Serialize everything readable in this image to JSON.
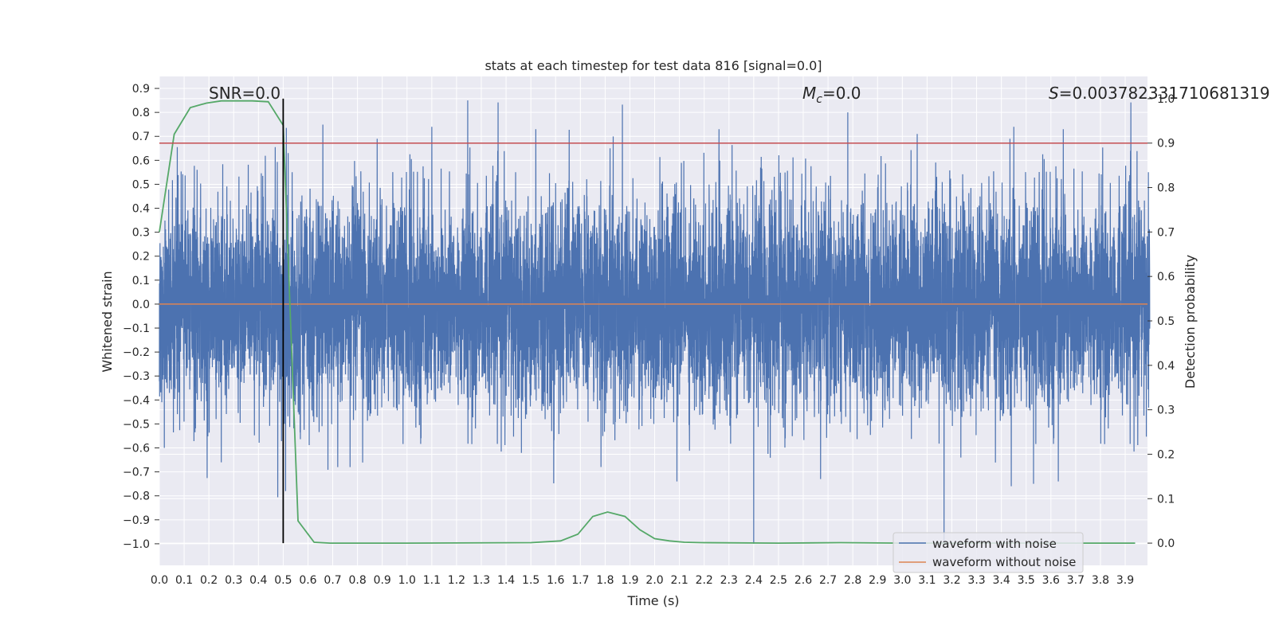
{
  "chart_data": {
    "type": "line",
    "title": "stats at each timestep for test data 816 [signal=0.0]",
    "xlabel": "Time (s)",
    "ylabel": "Whitened strain",
    "y2label": "Detection probability",
    "xlim": [
      0.0,
      3.99
    ],
    "ylim": [
      -1.09,
      0.95
    ],
    "y2lim": [
      -0.05,
      1.05
    ],
    "x_ticks": [
      0.0,
      0.1,
      0.2,
      0.3,
      0.4,
      0.5,
      0.6,
      0.7,
      0.8,
      0.9,
      1.0,
      1.1,
      1.2,
      1.3,
      1.4,
      1.5,
      1.6,
      1.7,
      1.8,
      1.9,
      2.0,
      2.1,
      2.2,
      2.3,
      2.4,
      2.5,
      2.6,
      2.7,
      2.8,
      2.9,
      3.0,
      3.1,
      3.2,
      3.3,
      3.4,
      3.5,
      3.6,
      3.7,
      3.8,
      3.9
    ],
    "x_tick_labels": [
      "0.0",
      "0.1",
      "0.2",
      "0.3",
      "0.4",
      "0.5",
      "0.6",
      "0.7",
      "0.8",
      "0.9",
      "1.0",
      "1.1",
      "1.2",
      "1.3",
      "1.4",
      "1.5",
      "1.6",
      "1.7",
      "1.8",
      "1.9",
      "2.0",
      "2.1",
      "2.2",
      "2.3",
      "2.4",
      "2.5",
      "2.6",
      "2.7",
      "2.8",
      "2.9",
      "3.0",
      "3.1",
      "3.2",
      "3.3",
      "3.4",
      "3.5",
      "3.6",
      "3.7",
      "3.8",
      "3.9"
    ],
    "y_ticks": [
      0.9,
      0.8,
      0.7,
      0.6,
      0.5,
      0.4,
      0.3,
      0.2,
      0.1,
      0.0,
      -0.1,
      -0.2,
      -0.3,
      -0.4,
      -0.5,
      -0.6,
      -0.7,
      -0.8,
      -0.9,
      -1.0
    ],
    "y_tick_labels": [
      "0.9",
      "0.8",
      "0.7",
      "0.6",
      "0.5",
      "0.4",
      "0.3",
      "0.2",
      "0.1",
      "0.0",
      "−0.1",
      "−0.2",
      "−0.3",
      "−0.4",
      "−0.5",
      "−0.6",
      "−0.7",
      "−0.8",
      "−0.9",
      "−1.0"
    ],
    "y2_ticks": [
      1.0,
      0.9,
      0.8,
      0.7,
      0.6,
      0.5,
      0.4,
      0.3,
      0.2,
      0.1,
      0.0
    ],
    "y2_tick_labels": [
      "1.0",
      "0.9",
      "0.8",
      "0.7",
      "0.6",
      "0.5",
      "0.4",
      "0.3",
      "0.2",
      "0.1",
      "0.0"
    ],
    "annotations": {
      "snr": "SNR=0.0",
      "mc_symbol": "M",
      "mc_sub": "c",
      "mc_value": "=0.0",
      "s_symbol": "S",
      "s_value": "=0.003782331710681319"
    },
    "threshold_line": {
      "value": 0.9,
      "axis": "y2"
    },
    "marker_line": {
      "x": 0.5,
      "axis": "y2",
      "range": [
        0.0,
        1.0
      ]
    },
    "series": [
      {
        "name": "waveform with noise",
        "axis": "y",
        "kind": "noise",
        "sample_rate_hz": 2048,
        "duration_s": 4.0,
        "std_estimate": 0.22,
        "range": [
          -1.0,
          0.85
        ],
        "notable_peaks": [
          {
            "x": 1.245,
            "y": 0.85
          },
          {
            "x": 2.4,
            "y": -1.0
          },
          {
            "x": 2.78,
            "y": 0.8
          },
          {
            "x": 1.1,
            "y": 0.74
          },
          {
            "x": 1.52,
            "y": 0.73
          },
          {
            "x": 2.26,
            "y": 0.73
          },
          {
            "x": 3.45,
            "y": 0.74
          },
          {
            "x": 3.65,
            "y": 0.73
          },
          {
            "x": 3.06,
            "y": 0.71
          },
          {
            "x": 1.82,
            "y": 0.65
          },
          {
            "x": 0.52,
            "y": 0.63
          },
          {
            "x": 3.44,
            "y": -0.76
          },
          {
            "x": 3.53,
            "y": -0.75
          },
          {
            "x": 3.63,
            "y": -0.74
          },
          {
            "x": 2.09,
            "y": -0.74
          },
          {
            "x": 2.67,
            "y": -0.73
          },
          {
            "x": 0.02,
            "y": -0.6
          },
          {
            "x": 0.25,
            "y": -0.66
          },
          {
            "x": 0.72,
            "y": -0.68
          },
          {
            "x": 0.77,
            "y": -0.68
          },
          {
            "x": 0.51,
            "y": -0.78
          }
        ]
      },
      {
        "name": "waveform without noise",
        "axis": "y",
        "x": [
          0.0,
          3.99
        ],
        "y": [
          0.0,
          0.0
        ]
      },
      {
        "name": "detection probability",
        "axis": "y2",
        "x": [
          0.0,
          0.06,
          0.125,
          0.19,
          0.25,
          0.31,
          0.375,
          0.44,
          0.5,
          0.56,
          0.625,
          0.69,
          0.75,
          1.0,
          1.5,
          1.62,
          1.69,
          1.75,
          1.81,
          1.88,
          1.94,
          2.0,
          2.06,
          2.12,
          2.19,
          2.5,
          2.75,
          3.0,
          3.25,
          3.5,
          3.75,
          3.94
        ],
        "y": [
          0.7,
          0.92,
          0.98,
          0.99,
          0.995,
          0.995,
          0.995,
          0.993,
          0.94,
          0.05,
          0.002,
          0.0,
          0.0,
          0.0,
          0.001,
          0.005,
          0.02,
          0.06,
          0.07,
          0.06,
          0.03,
          0.01,
          0.005,
          0.002,
          0.001,
          0.0,
          0.001,
          0.0,
          0.0,
          0.0,
          0.0,
          0.0
        ]
      }
    ],
    "legend": {
      "location": "lower-right",
      "entries": [
        "waveform with noise",
        "waveform without noise"
      ]
    },
    "colors": {
      "noise": "#4c72b0",
      "clean": "#dd8452",
      "prob": "#55a868",
      "threshold": "#c44e52",
      "marker": "#000000",
      "plot_bg": "#eaeaf2",
      "grid": "#ffffff"
    },
    "grid": true
  }
}
